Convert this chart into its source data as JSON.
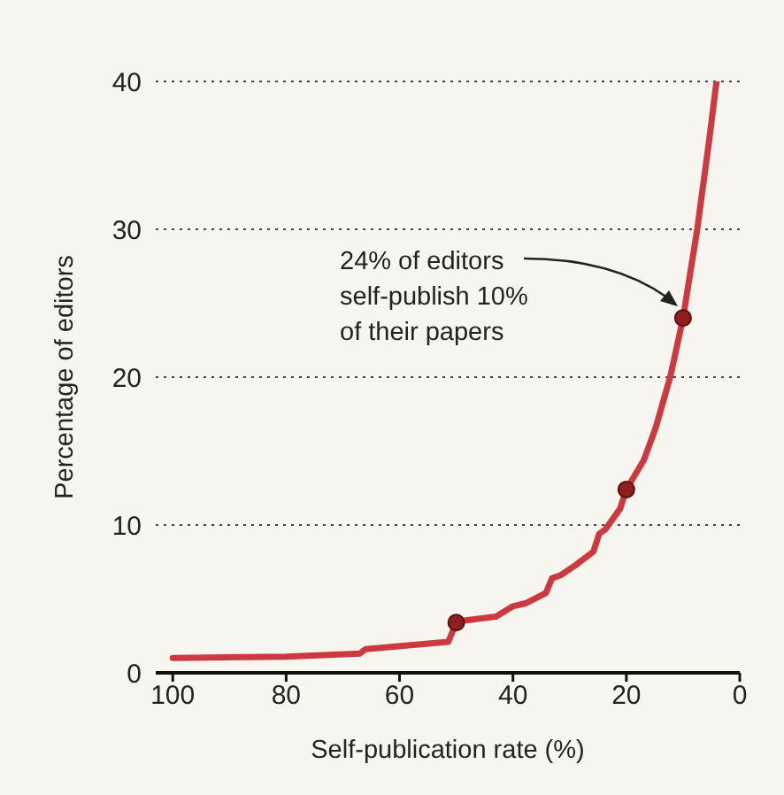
{
  "chart_data": {
    "type": "line",
    "xlabel": "Self-publication rate (%)",
    "ylabel": "Percentage of editors",
    "xlim": [
      103,
      0
    ],
    "xticks": [
      100,
      80,
      60,
      40,
      20,
      0
    ],
    "ylim": [
      0,
      40
    ],
    "yticks": [
      0,
      10,
      20,
      30,
      40
    ],
    "grid": "y",
    "series": [
      {
        "type": "line",
        "color": "#cc3a3f",
        "line_style": "solid",
        "x": [
          100,
          80,
          67,
          66,
          51.4,
          50,
          49.3,
          43,
          40,
          37.8,
          34.2,
          33.1,
          31.6,
          28.9,
          25.8,
          24.8,
          23.7,
          21.1,
          20,
          16.9,
          14.8,
          12.2,
          10,
          7.5,
          5.4,
          4.1
        ],
        "values": [
          1.0,
          1.1,
          1.3,
          1.6,
          2.1,
          3.4,
          3.5,
          3.8,
          4.5,
          4.7,
          5.4,
          6.4,
          6.6,
          7.3,
          8.2,
          9.4,
          9.7,
          11.1,
          12.4,
          14.4,
          16.6,
          20.1,
          24,
          30,
          36,
          40
        ]
      },
      {
        "type": "scatter",
        "color": "#8e1f1f",
        "marker": "circle",
        "x": [
          50,
          20,
          10
        ],
        "values": [
          3.4,
          12.4,
          24
        ]
      }
    ],
    "annotations": [
      "24% of editors\nself-publish 10%\nof their papers"
    ]
  }
}
